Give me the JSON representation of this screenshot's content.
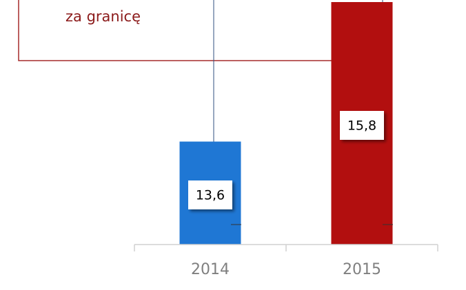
{
  "chart_data": {
    "type": "bar",
    "annotation": "za granicę",
    "categories": [
      "2014",
      "2015"
    ],
    "values": [
      13.6,
      15.8
    ],
    "value_labels": [
      "13,6",
      "15,8"
    ],
    "colors": [
      "#1f77d4",
      "#b20f0f"
    ],
    "ylim": [
      12,
      15.8
    ]
  }
}
